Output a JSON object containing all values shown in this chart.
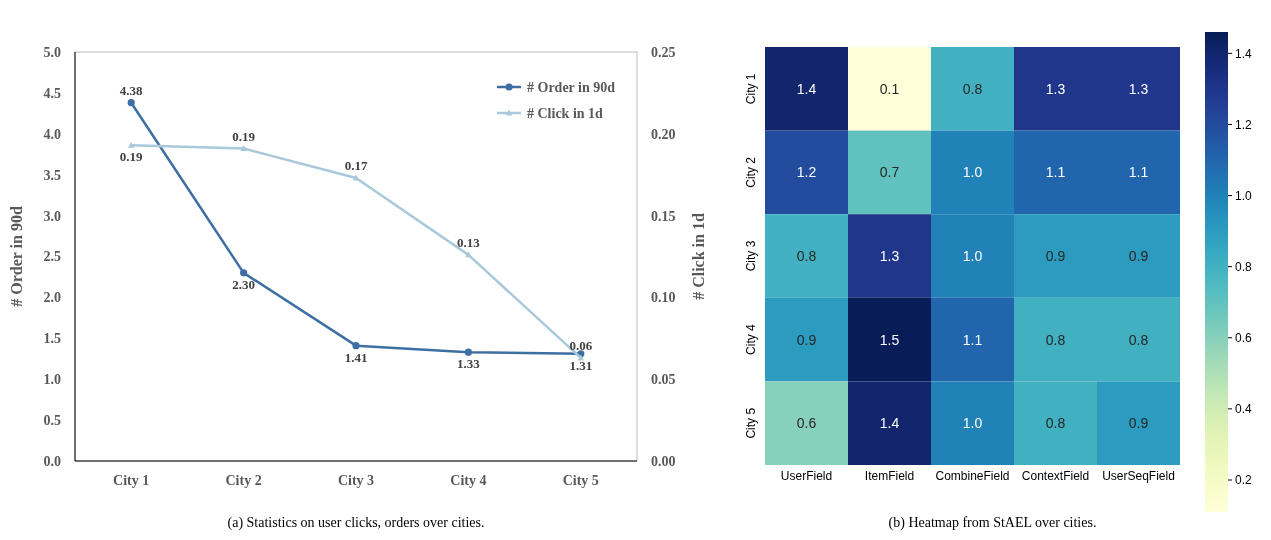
{
  "chart_data": [
    {
      "type": "line",
      "title": "(a) Statistics on user clicks, orders over cities.",
      "categories": [
        "City 1",
        "City 2",
        "City 3",
        "City 4",
        "City 5"
      ],
      "ylabel": "# Order in 90d",
      "y2label": "# Click in 1d",
      "ylim": [
        0,
        5
      ],
      "yticks": [
        {
          "value": 0,
          "label": "0.0"
        },
        {
          "value": 0.5,
          "label": "0.5"
        },
        {
          "value": 1,
          "label": "1.0"
        },
        {
          "value": 1.5,
          "label": "1.5"
        },
        {
          "value": 2,
          "label": "2.0"
        },
        {
          "value": 2.5,
          "label": "2.5"
        },
        {
          "value": 3,
          "label": "3.0"
        },
        {
          "value": 3.5,
          "label": "3.5"
        },
        {
          "value": 4,
          "label": "4.0"
        },
        {
          "value": 4.5,
          "label": "4.5"
        },
        {
          "value": 5,
          "label": "5.0"
        }
      ],
      "y2lim": [
        0,
        0.25
      ],
      "y2ticks": [
        {
          "value": 0,
          "label": "0.00"
        },
        {
          "value": 0.05,
          "label": "0.05"
        },
        {
          "value": 0.1,
          "label": "0.10"
        },
        {
          "value": 0.15,
          "label": "0.15"
        },
        {
          "value": 0.2,
          "label": "0.20"
        },
        {
          "value": 0.25,
          "label": "0.25"
        }
      ],
      "legend": "top right",
      "grid": false,
      "series": [
        {
          "name": "# Order in 90d",
          "color": "#3d6fa3",
          "marker": "circle",
          "values": [
            4.38,
            2.3,
            1.41,
            1.33,
            1.31
          ],
          "value_labels": [
            "4.38",
            "2.30",
            "1.41",
            "1.33",
            "1.31"
          ]
        },
        {
          "name": "# Click in 1d",
          "color": "#a9c9da",
          "marker": "triangle",
          "axis": "y2",
          "values": [
            0.193,
            0.191,
            0.173,
            0.126,
            0.063
          ],
          "value_labels": [
            "0.19",
            "0.19",
            "0.17",
            "0.13",
            "0.06"
          ]
        }
      ]
    },
    {
      "type": "heatmap",
      "title": "(b) Heatmap from StAEL over cities.",
      "categories": [
        "UserField",
        "ItemField",
        "CombineField",
        "ContextField",
        "UserSeqField"
      ],
      "y_categories": [
        "City 1",
        "City 2",
        "City 3",
        "City 4",
        "City 5"
      ],
      "clim": [
        0.11,
        1.46
      ],
      "cticks": [
        0.2,
        0.4,
        0.6,
        0.8,
        {
          "value": 1,
          "label": "1.0"
        },
        1.2,
        1.4
      ],
      "cells": [
        [
          1.4,
          0.11,
          0.8,
          1.3,
          1.3
        ],
        [
          1.2,
          0.7,
          1.0,
          1.1,
          1.1
        ],
        [
          0.8,
          1.3,
          1.0,
          0.9,
          0.9
        ],
        [
          0.9,
          1.46,
          1.1,
          0.8,
          0.8
        ],
        [
          0.6,
          1.4,
          1.0,
          0.8,
          0.9
        ]
      ],
      "cell_labels": [
        [
          "1.4",
          "0.1",
          "0.8",
          "1.3",
          "1.3"
        ],
        [
          "1.2",
          "0.7",
          "1.0",
          "1.1",
          "1.1"
        ],
        [
          "0.8",
          "1.3",
          "1.0",
          "0.9",
          "0.9"
        ],
        [
          "0.9",
          "1.5",
          "1.1",
          "0.8",
          "0.8"
        ],
        [
          "0.6",
          "1.4",
          "1.0",
          "0.8",
          "0.9"
        ]
      ]
    }
  ]
}
